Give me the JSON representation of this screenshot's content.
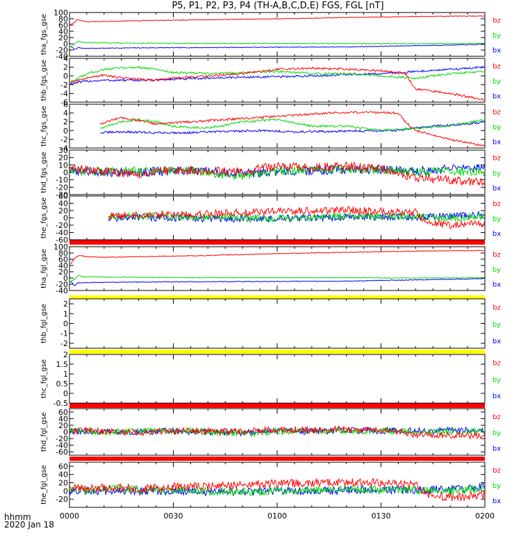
{
  "title": "P5, P1, P2, P3, P4 (TH-A,B,C,D,E) FGS, FGL [nT]",
  "time_axis": {
    "ticks": [
      "0000",
      "0030",
      "0100",
      "0130",
      "0200"
    ],
    "unit_label": "hhmm",
    "date_label": "2020 Jan 18"
  },
  "colors": {
    "bx": "#0000ff",
    "by": "#00d800",
    "bz": "#ff0000",
    "red_bar": "#ff0000",
    "yellow_bar": "#ffff00"
  },
  "status_bars": [
    {
      "after_panel": 4,
      "color": "red"
    },
    {
      "after_panel": 5,
      "color": "yellow"
    },
    {
      "after_panel": 6,
      "color": "yellow"
    },
    {
      "after_panel": 7,
      "color": "red"
    },
    {
      "after_panel": 8,
      "color": "red"
    }
  ],
  "chart_data": [
    {
      "type": "line",
      "ylabel": "tha_fgs_gse",
      "ylim": [
        -40,
        100
      ],
      "yticks": [
        -40,
        -20,
        0,
        20,
        40,
        60,
        80,
        100
      ],
      "data_start": 0.28,
      "series": [
        {
          "name": "bz",
          "x": [
            0.28,
            1.5,
            2.2,
            3,
            5,
            10,
            20,
            40,
            60,
            80,
            100,
            120
          ],
          "y": [
            62,
            68,
            78,
            75,
            70,
            72,
            74,
            77,
            80,
            84,
            87,
            89
          ]
        },
        {
          "name": "by",
          "x": [
            0.28,
            1.5,
            2.5,
            4,
            10,
            20,
            40,
            60,
            80,
            100,
            120
          ],
          "y": [
            -8,
            -2,
            8,
            4,
            3,
            2,
            1,
            1,
            1,
            0,
            1
          ]
        },
        {
          "name": "bx",
          "x": [
            0.28,
            1.5,
            2.5,
            4,
            10,
            20,
            40,
            60,
            80,
            100,
            120
          ],
          "y": [
            -8,
            -18,
            -12,
            -15,
            -14,
            -13,
            -12,
            -11,
            -10,
            -6,
            -2
          ]
        }
      ]
    },
    {
      "type": "line",
      "ylabel": "thb_fgs_gse",
      "ylim": [
        -6,
        4
      ],
      "yticks": [
        -6,
        -4,
        -2,
        0,
        2,
        4
      ],
      "data_start": 0.28,
      "series": [
        {
          "name": "bz",
          "x": [
            0.28,
            5,
            10,
            15,
            20,
            25,
            30,
            40,
            50,
            60,
            70,
            80,
            90,
            97,
            100,
            110,
            120
          ],
          "y": [
            -1.5,
            -0.5,
            0.2,
            -0.4,
            -0.8,
            -1,
            -0.5,
            0,
            0.5,
            1.5,
            1.8,
            1.5,
            1.2,
            0.5,
            -3,
            -4,
            -5.5
          ]
        },
        {
          "name": "by",
          "x": [
            0.28,
            5,
            10,
            15,
            20,
            25,
            30,
            40,
            50,
            60,
            70,
            80,
            90,
            100,
            110,
            120
          ],
          "y": [
            -1.5,
            0.5,
            1.5,
            1.8,
            2,
            1.5,
            0.8,
            0.5,
            0.8,
            1,
            0.5,
            0.5,
            0,
            -0.5,
            0.5,
            1
          ]
        },
        {
          "name": "bx",
          "x": [
            0.28,
            5,
            10,
            20,
            30,
            40,
            50,
            60,
            70,
            80,
            90,
            100,
            110,
            120
          ],
          "y": [
            -1.8,
            -1.2,
            -1,
            -1,
            -0.8,
            -0.5,
            -0.3,
            -0.2,
            0,
            0.3,
            0.5,
            1,
            1.5,
            2
          ]
        }
      ]
    },
    {
      "type": "line",
      "ylabel": "thc_fgs_gse",
      "ylim": [
        -4,
        6
      ],
      "yticks": [
        -4,
        -2,
        0,
        2,
        4,
        6
      ],
      "data_start": 8.9,
      "series": [
        {
          "name": "bz",
          "x": [
            8.9,
            15,
            25,
            35,
            45,
            55,
            65,
            75,
            85,
            95,
            97,
            100,
            110,
            120
          ],
          "y": [
            1.5,
            3,
            1.5,
            2,
            2.5,
            3,
            3.5,
            4,
            4.2,
            4,
            2,
            0,
            -2,
            -3.5
          ]
        },
        {
          "name": "by",
          "x": [
            8.9,
            15,
            20,
            25,
            30,
            40,
            50,
            60,
            70,
            80,
            90,
            100,
            110,
            120
          ],
          "y": [
            0.5,
            2,
            2.5,
            2,
            1,
            0.5,
            2,
            2.5,
            1,
            1,
            0,
            0.5,
            1,
            2.5
          ]
        },
        {
          "name": "bx",
          "x": [
            8.9,
            15,
            25,
            35,
            45,
            55,
            65,
            75,
            85,
            95,
            105,
            115,
            120
          ],
          "y": [
            -0.5,
            -0.3,
            -0.5,
            -0.5,
            -0.2,
            0,
            -0.3,
            -0.2,
            -0.1,
            0,
            1,
            1.5,
            2
          ]
        }
      ]
    },
    {
      "type": "line",
      "ylabel": "thd_fgs_gse",
      "ylim": [
        -30,
        30
      ],
      "yticks": [
        -30,
        -20,
        -10,
        0,
        10,
        20,
        30
      ],
      "data_start": 0,
      "series": [
        {
          "name": "bz",
          "x": [
            0,
            10,
            20,
            25,
            30,
            40,
            50,
            55,
            60,
            70,
            80,
            90,
            95,
            100,
            110,
            120
          ],
          "y": [
            5,
            2,
            -3,
            2,
            3,
            2,
            0,
            5,
            8,
            6,
            8,
            5,
            0,
            -8,
            -10,
            -15
          ]
        },
        {
          "name": "by",
          "x": [
            0,
            10,
            20,
            30,
            40,
            50,
            60,
            70,
            80,
            90,
            100,
            110,
            120
          ],
          "y": [
            3,
            1,
            2,
            3,
            0,
            -5,
            2,
            3,
            4,
            3,
            0,
            2,
            0
          ]
        },
        {
          "name": "bx",
          "x": [
            0,
            10,
            20,
            30,
            40,
            50,
            60,
            70,
            80,
            90,
            100,
            110,
            120
          ],
          "y": [
            2,
            0,
            0,
            2,
            1,
            -2,
            1,
            2,
            4,
            4,
            2,
            5,
            5
          ]
        }
      ]
    },
    {
      "type": "line",
      "ylabel": "the_fgs_gse",
      "ylim": [
        -60,
        60
      ],
      "yticks": [
        -60,
        -40,
        -20,
        0,
        20,
        40,
        60
      ],
      "data_start": 11.2,
      "series": [
        {
          "name": "bz",
          "x": [
            11.2,
            20,
            30,
            40,
            50,
            60,
            70,
            80,
            90,
            100,
            103,
            110,
            120
          ],
          "y": [
            5,
            8,
            10,
            12,
            15,
            18,
            20,
            22,
            18,
            15,
            -10,
            -20,
            -15
          ]
        },
        {
          "name": "by",
          "x": [
            11.2,
            20,
            30,
            40,
            50,
            60,
            70,
            80,
            90,
            100,
            110,
            120
          ],
          "y": [
            5,
            5,
            3,
            2,
            0,
            -2,
            2,
            5,
            4,
            2,
            0,
            5
          ]
        },
        {
          "name": "bx",
          "x": [
            11.2,
            20,
            30,
            40,
            50,
            60,
            70,
            80,
            90,
            100,
            110,
            120
          ],
          "y": [
            0,
            0,
            0,
            -2,
            -2,
            -3,
            0,
            2,
            3,
            2,
            5,
            8
          ]
        }
      ]
    },
    {
      "type": "line",
      "ylabel": "tha_fgl_gse",
      "ylim": [
        -40,
        100
      ],
      "yticks": [
        -40,
        -20,
        0,
        20,
        40,
        60,
        80,
        100
      ],
      "data_start": 0.28,
      "series": [
        {
          "name": "bz",
          "x": [
            0.28,
            1.5,
            2.2,
            3,
            5,
            10,
            20,
            40,
            60,
            80,
            100,
            120
          ],
          "y": [
            45,
            62,
            70,
            72,
            68,
            66,
            68,
            72,
            78,
            82,
            86,
            88
          ]
        },
        {
          "name": "by",
          "x": [
            0.28,
            1.5,
            2.5,
            4,
            10,
            20,
            40,
            60,
            80,
            100,
            120
          ],
          "y": [
            -10,
            -5,
            8,
            4,
            3,
            2,
            1,
            1,
            1,
            0,
            1
          ]
        },
        {
          "name": "bx",
          "x": [
            0.28,
            1.5,
            2.5,
            4,
            10,
            20,
            40,
            60,
            80,
            100,
            120
          ],
          "y": [
            -10,
            -25,
            -15,
            -15,
            -14,
            -13,
            -12,
            -11,
            -10,
            -6,
            -2
          ]
        }
      ]
    },
    {
      "type": "line",
      "ylabel": "thb_fgl_gse",
      "ylim": [
        -2.5,
        2.5
      ],
      "yticks": [
        -2,
        -1,
        0,
        1,
        2
      ],
      "data_start": 0,
      "series": []
    },
    {
      "type": "line",
      "ylabel": "thc_fgl_gse",
      "ylim": [
        -0.5,
        2.0
      ],
      "yticks": [
        -0.5,
        0.0,
        0.5,
        1.0,
        1.5,
        2.0
      ],
      "data_start": 0,
      "series": []
    },
    {
      "type": "line",
      "ylabel": "thd_fgl_gse",
      "ylim": [
        -70,
        70
      ],
      "yticks": [
        -60,
        -40,
        -20,
        0,
        20,
        40,
        60
      ],
      "data_start": 0,
      "series": [
        {
          "name": "bz",
          "x": [
            0,
            10,
            20,
            24,
            30,
            40,
            50,
            55,
            60,
            70,
            80,
            90,
            95,
            100,
            110,
            120
          ],
          "y": [
            5,
            2,
            -3,
            0,
            3,
            2,
            0,
            5,
            8,
            6,
            8,
            5,
            0,
            -8,
            -10,
            -12
          ]
        },
        {
          "name": "by",
          "x": [
            0,
            10,
            20,
            30,
            40,
            50,
            60,
            70,
            80,
            90,
            100,
            110,
            120
          ],
          "y": [
            3,
            1,
            2,
            3,
            0,
            -5,
            2,
            3,
            4,
            3,
            0,
            2,
            0
          ]
        },
        {
          "name": "bx",
          "x": [
            0,
            10,
            20,
            30,
            40,
            50,
            60,
            70,
            80,
            90,
            100,
            110,
            120
          ],
          "y": [
            2,
            0,
            0,
            2,
            1,
            -2,
            1,
            2,
            4,
            4,
            2,
            5,
            5
          ]
        }
      ]
    },
    {
      "type": "line",
      "ylabel": "the_fgl_gse",
      "ylim": [
        -40,
        70
      ],
      "yticks": [
        -20,
        0,
        20,
        40,
        60
      ],
      "data_start": 0,
      "series": [
        {
          "name": "bz",
          "x": [
            0,
            5,
            10,
            20,
            30,
            40,
            50,
            60,
            70,
            80,
            90,
            100,
            103,
            110,
            120
          ],
          "y": [
            10,
            5,
            8,
            5,
            10,
            12,
            15,
            18,
            20,
            22,
            20,
            15,
            -10,
            -15,
            -10
          ]
        },
        {
          "name": "by",
          "x": [
            0,
            5,
            10,
            20,
            30,
            40,
            50,
            60,
            70,
            80,
            90,
            100,
            110,
            120
          ],
          "y": [
            5,
            0,
            5,
            3,
            2,
            0,
            -2,
            0,
            2,
            5,
            4,
            2,
            0,
            5
          ]
        },
        {
          "name": "bx",
          "x": [
            0,
            5,
            10,
            20,
            30,
            40,
            50,
            60,
            70,
            80,
            90,
            100,
            110,
            120
          ],
          "y": [
            0,
            2,
            0,
            0,
            0,
            -2,
            -2,
            0,
            0,
            2,
            3,
            2,
            5,
            10
          ]
        }
      ]
    }
  ]
}
